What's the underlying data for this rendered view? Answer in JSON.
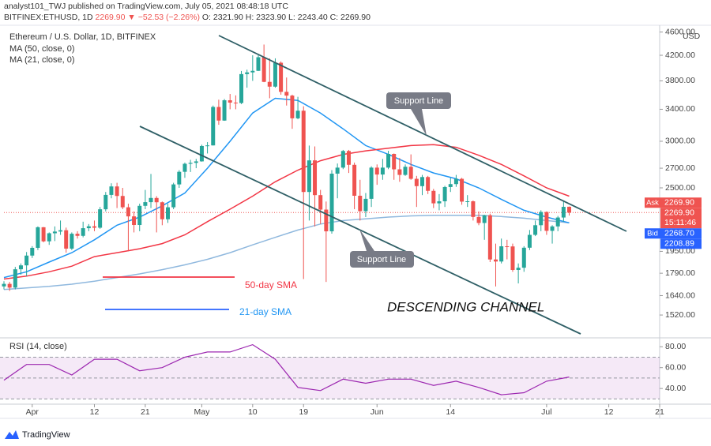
{
  "header": {
    "publisher": "analyst101_TWJ published on TradingView.com, July 05, 2021 08:48:18 UTC",
    "symbol": "BITFINEX:ETHUSD, 1D",
    "last": "2269.90",
    "change": "▼ −52.53 (−2.26%)",
    "ohlc": "O: 2321.90  H: 2323.90  L: 2243.40  C: 2269.90"
  },
  "footer": "TradingView",
  "annotations": {
    "support_upper": "Support Line",
    "support_lower": "Support Line",
    "channel": "DESCENDING CHANNEL",
    "sma50": "50-day SMA",
    "sma21": "21-day SMA"
  },
  "chart_data": [
    {
      "type": "candlestick",
      "title": "Ethereum / U.S. Dollar, 1D, BITFINEX",
      "currency": "USD",
      "log_scale": true,
      "up_color": "#26a69a",
      "down_color": "#ef5350",
      "x": [
        "2021-03-27",
        "2021-03-28",
        "2021-03-29",
        "2021-03-30",
        "2021-03-31",
        "2021-04-01",
        "2021-04-02",
        "2021-04-03",
        "2021-04-04",
        "2021-04-05",
        "2021-04-06",
        "2021-04-07",
        "2021-04-08",
        "2021-04-09",
        "2021-04-10",
        "2021-04-11",
        "2021-04-12",
        "2021-04-13",
        "2021-04-14",
        "2021-04-15",
        "2021-04-16",
        "2021-04-17",
        "2021-04-18",
        "2021-04-19",
        "2021-04-20",
        "2021-04-21",
        "2021-04-22",
        "2021-04-23",
        "2021-04-24",
        "2021-04-25",
        "2021-04-26",
        "2021-04-27",
        "2021-04-28",
        "2021-04-29",
        "2021-04-30",
        "2021-05-01",
        "2021-05-02",
        "2021-05-03",
        "2021-05-04",
        "2021-05-05",
        "2021-05-06",
        "2021-05-07",
        "2021-05-08",
        "2021-05-09",
        "2021-05-10",
        "2021-05-11",
        "2021-05-12",
        "2021-05-13",
        "2021-05-14",
        "2021-05-15",
        "2021-05-16",
        "2021-05-17",
        "2021-05-18",
        "2021-05-19",
        "2021-05-20",
        "2021-05-21",
        "2021-05-22",
        "2021-05-23",
        "2021-05-24",
        "2021-05-25",
        "2021-05-26",
        "2021-05-27",
        "2021-05-28",
        "2021-05-29",
        "2021-05-30",
        "2021-05-31",
        "2021-06-01",
        "2021-06-02",
        "2021-06-03",
        "2021-06-04",
        "2021-06-05",
        "2021-06-06",
        "2021-06-07",
        "2021-06-08",
        "2021-06-09",
        "2021-06-10",
        "2021-06-11",
        "2021-06-12",
        "2021-06-13",
        "2021-06-14",
        "2021-06-15",
        "2021-06-16",
        "2021-06-17",
        "2021-06-18",
        "2021-06-19",
        "2021-06-20",
        "2021-06-21",
        "2021-06-22",
        "2021-06-23",
        "2021-06-24",
        "2021-06-25",
        "2021-06-26",
        "2021-06-27",
        "2021-06-28",
        "2021-06-29",
        "2021-06-30",
        "2021-07-01",
        "2021-07-02",
        "2021-07-03",
        "2021-07-04",
        "2021-07-05"
      ],
      "open": [
        1700,
        1717,
        1692,
        1818,
        1846,
        1918,
        1977,
        2143,
        2028,
        2093,
        2107,
        2118,
        1971,
        2089,
        2072,
        2135,
        2151,
        2139,
        2299,
        2432,
        2514,
        2422,
        2317,
        2236,
        2162,
        2330,
        2364,
        2403,
        2363,
        2211,
        2317,
        2534,
        2662,
        2747,
        2757,
        2773,
        2945,
        2952,
        3431,
        3253,
        3522,
        3490,
        3484,
        3902,
        3928,
        3952,
        4168,
        3785,
        3715,
        4079,
        3640,
        3587,
        3282,
        3381,
        2460,
        2784,
        2430,
        2296,
        2109,
        2643,
        2706,
        2888,
        2736,
        2424,
        2282,
        2395,
        2706,
        2634,
        2706,
        2855,
        2688,
        2630,
        2715,
        2590,
        2517,
        2608,
        2471,
        2353,
        2372,
        2508,
        2537,
        2590,
        2369,
        2372,
        2231,
        2179,
        2246,
        1889,
        1874,
        1989,
        1988,
        1813,
        1829,
        1978,
        2080,
        2160,
        2275,
        2113,
        2150,
        2226,
        2321.9
      ],
      "high": [
        1735,
        1730,
        1835,
        1860,
        1945,
        1990,
        2150,
        2145,
        2100,
        2150,
        2200,
        2140,
        2100,
        2110,
        2190,
        2170,
        2200,
        2320,
        2460,
        2545,
        2550,
        2500,
        2350,
        2280,
        2350,
        2480,
        2640,
        2420,
        2370,
        2350,
        2550,
        2680,
        2760,
        2790,
        2800,
        2960,
        2990,
        3450,
        3530,
        3540,
        3610,
        3590,
        3950,
        3970,
        4200,
        4200,
        4380,
        4150,
        4150,
        4100,
        3850,
        3600,
        3570,
        3440,
        2950,
        2940,
        2480,
        2370,
        2680,
        2750,
        2900,
        2900,
        2760,
        2580,
        2450,
        2720,
        2740,
        2800,
        2890,
        2860,
        2810,
        2740,
        2850,
        2620,
        2630,
        2620,
        2490,
        2440,
        2520,
        2600,
        2630,
        2600,
        2430,
        2380,
        2280,
        2250,
        2260,
        2010,
        2050,
        2040,
        2010,
        1860,
        1990,
        2120,
        2200,
        2290,
        2280,
        2160,
        2240,
        2380,
        2323.9
      ],
      "low": [
        1680,
        1670,
        1680,
        1780,
        1770,
        1900,
        1960,
        2020,
        2000,
        2030,
        2080,
        1940,
        1960,
        2050,
        2060,
        2110,
        2110,
        2130,
        2280,
        2400,
        2310,
        2300,
        1950,
        2100,
        2110,
        2300,
        2310,
        2100,
        2160,
        2180,
        2300,
        2500,
        2600,
        2660,
        2700,
        2770,
        2860,
        2950,
        3200,
        3250,
        3400,
        3400,
        3470,
        3700,
        3800,
        3950,
        3780,
        3550,
        3700,
        3600,
        3450,
        3150,
        3270,
        1750,
        2200,
        2150,
        2170,
        1730,
        2090,
        2400,
        2690,
        2650,
        2300,
        2200,
        2230,
        2320,
        2530,
        2580,
        2690,
        2580,
        2560,
        2620,
        2580,
        2320,
        2430,
        2440,
        2310,
        2290,
        2320,
        2460,
        2510,
        2340,
        2320,
        2200,
        2160,
        2040,
        1870,
        1700,
        1860,
        1890,
        1800,
        1720,
        1800,
        1960,
        2070,
        2110,
        2080,
        2010,
        2110,
        2190,
        2243.4
      ],
      "close": [
        1717,
        1692,
        1818,
        1846,
        1918,
        1977,
        2143,
        2028,
        2093,
        2107,
        2118,
        1971,
        2089,
        2072,
        2135,
        2151,
        2139,
        2299,
        2432,
        2514,
        2422,
        2317,
        2236,
        2162,
        2330,
        2364,
        2403,
        2363,
        2211,
        2317,
        2534,
        2662,
        2747,
        2757,
        2773,
        2945,
        2952,
        3431,
        3253,
        3522,
        3490,
        3484,
        3902,
        3928,
        3952,
        4168,
        3785,
        3715,
        4079,
        3640,
        3587,
        3282,
        3381,
        2460,
        2784,
        2430,
        2296,
        2109,
        2643,
        2706,
        2888,
        2736,
        2424,
        2282,
        2395,
        2706,
        2634,
        2706,
        2855,
        2688,
        2630,
        2715,
        2590,
        2517,
        2608,
        2471,
        2353,
        2372,
        2508,
        2537,
        2590,
        2369,
        2372,
        2231,
        2179,
        2246,
        1889,
        1874,
        1989,
        1988,
        1813,
        1829,
        1978,
        2080,
        2160,
        2275,
        2113,
        2150,
        2226,
        2321,
        2269.9
      ],
      "series": [
        {
          "name": "MA (50, close, 0)",
          "color": "#f23645",
          "x": [
            "2021-03-27",
            "2021-03-31",
            "2021-04-04",
            "2021-04-08",
            "2021-04-12",
            "2021-04-16",
            "2021-04-20",
            "2021-04-24",
            "2021-04-28",
            "2021-05-02",
            "2021-05-06",
            "2021-05-10",
            "2021-05-14",
            "2021-05-18",
            "2021-05-22",
            "2021-05-26",
            "2021-05-30",
            "2021-06-03",
            "2021-06-07",
            "2021-06-11",
            "2021-06-15",
            "2021-06-19",
            "2021-06-23",
            "2021-06-27",
            "2021-07-01",
            "2021-07-05"
          ],
          "values": [
            1750,
            1770,
            1800,
            1840,
            1910,
            1940,
            1970,
            2010,
            2080,
            2190,
            2300,
            2420,
            2560,
            2680,
            2780,
            2850,
            2890,
            2920,
            2950,
            2960,
            2930,
            2840,
            2740,
            2620,
            2500,
            2420
          ]
        },
        {
          "name": "MA (21, close, 0)",
          "color": "#2196f3",
          "x": [
            "2021-03-27",
            "2021-03-31",
            "2021-04-04",
            "2021-04-08",
            "2021-04-12",
            "2021-04-16",
            "2021-04-20",
            "2021-04-24",
            "2021-04-28",
            "2021-05-02",
            "2021-05-06",
            "2021-05-10",
            "2021-05-14",
            "2021-05-18",
            "2021-05-22",
            "2021-05-26",
            "2021-05-30",
            "2021-06-03",
            "2021-06-07",
            "2021-06-11",
            "2021-06-15",
            "2021-06-19",
            "2021-06-23",
            "2021-06-27",
            "2021-07-01",
            "2021-07-05"
          ],
          "values": [
            1760,
            1800,
            1870,
            1940,
            2040,
            2160,
            2230,
            2330,
            2450,
            2700,
            3000,
            3350,
            3550,
            3520,
            3350,
            3150,
            2950,
            2850,
            2740,
            2650,
            2590,
            2500,
            2390,
            2290,
            2230,
            2180
          ]
        },
        {
          "color": "#8fb8de",
          "x": [
            "2021-03-27",
            "2021-03-31",
            "2021-04-04",
            "2021-04-08",
            "2021-04-12",
            "2021-04-16",
            "2021-04-20",
            "2021-04-24",
            "2021-04-28",
            "2021-05-02",
            "2021-05-06",
            "2021-05-10",
            "2021-05-14",
            "2021-05-18",
            "2021-05-22",
            "2021-05-26",
            "2021-05-30",
            "2021-06-03",
            "2021-06-07",
            "2021-06-11",
            "2021-06-15",
            "2021-06-19",
            "2021-06-23",
            "2021-06-27",
            "2021-07-01",
            "2021-07-05"
          ],
          "values": [
            1680,
            1690,
            1700,
            1715,
            1735,
            1760,
            1785,
            1815,
            1850,
            1890,
            1940,
            2000,
            2060,
            2120,
            2170,
            2200,
            2215,
            2230,
            2240,
            2245,
            2245,
            2245,
            2235,
            2220,
            2200,
            2180
          ]
        }
      ],
      "xlim": [
        "2021-03-27",
        "2021-07-21"
      ],
      "xticks": [
        {
          "value": "2021-04-01",
          "label": "Apr"
        },
        {
          "value": "2021-04-12",
          "label": "12"
        },
        {
          "value": "2021-04-21",
          "label": "21"
        },
        {
          "value": "2021-05-01",
          "label": "May"
        },
        {
          "value": "2021-05-10",
          "label": "10"
        },
        {
          "value": "2021-05-19",
          "label": "19"
        },
        {
          "value": "2021-06-01",
          "label": "Jun"
        },
        {
          "value": "2021-06-14",
          "label": "14"
        },
        {
          "value": "2021-07-01",
          "label": "Jul"
        },
        {
          "value": "2021-07-12",
          "label": "12"
        },
        {
          "value": "2021-07-21",
          "label": "21"
        }
      ],
      "ylim": [
        1403,
        4680
      ],
      "yticks": [
        {
          "value": 1520,
          "label": "1520.00"
        },
        {
          "value": 1640,
          "label": "1640.00"
        },
        {
          "value": 1790,
          "label": "1790.00"
        },
        {
          "value": 1950,
          "label": "1950.00"
        },
        {
          "value": 2500,
          "label": "2500.00"
        },
        {
          "value": 2700,
          "label": "2700.00"
        },
        {
          "value": 3000,
          "label": "3000.00"
        },
        {
          "value": 3400,
          "label": "3400.00"
        },
        {
          "value": 3800,
          "label": "3800.00"
        },
        {
          "value": 4200,
          "label": "4200.00"
        },
        {
          "value": 4600,
          "label": "4600.00"
        }
      ],
      "price_labels": [
        {
          "tag": "Ask",
          "value": 2269.9,
          "label": "2269.90",
          "color": "#ef5350"
        },
        {
          "value": 2269.9,
          "label": "2269.90",
          "time": "15:11:46",
          "color": "#ef5350"
        },
        {
          "tag": "Bid",
          "value": 2268.7,
          "label": "2268.70",
          "color": "#2962ff"
        },
        {
          "value": 2208.89,
          "label": "2208.89",
          "color": "#2962ff"
        }
      ]
    },
    {
      "type": "line",
      "title": "RSI (14, close)",
      "band": [
        30,
        70
      ],
      "midline": 50,
      "band_color": "#9c27b0",
      "series": [
        {
          "color": "#9c27b0",
          "x": [
            "2021-03-27",
            "2021-03-31",
            "2021-04-04",
            "2021-04-08",
            "2021-04-12",
            "2021-04-16",
            "2021-04-20",
            "2021-04-24",
            "2021-04-28",
            "2021-05-02",
            "2021-05-06",
            "2021-05-10",
            "2021-05-14",
            "2021-05-18",
            "2021-05-22",
            "2021-05-26",
            "2021-05-30",
            "2021-06-03",
            "2021-06-07",
            "2021-06-11",
            "2021-06-15",
            "2021-06-19",
            "2021-06-23",
            "2021-06-27",
            "2021-07-01",
            "2021-07-05"
          ],
          "values": [
            48,
            63,
            63,
            53,
            68,
            68,
            57,
            60,
            70,
            75,
            75,
            82,
            68,
            41,
            38,
            49,
            45,
            49,
            49,
            43,
            47,
            41,
            34,
            36,
            47,
            51
          ]
        }
      ],
      "xlim": [
        "2021-03-27",
        "2021-07-21"
      ],
      "ylim": [
        25,
        87
      ],
      "yticks": [
        {
          "value": 40,
          "label": "40.00"
        },
        {
          "value": 60,
          "label": "60.00"
        },
        {
          "value": 80,
          "label": "80.00"
        }
      ]
    }
  ]
}
